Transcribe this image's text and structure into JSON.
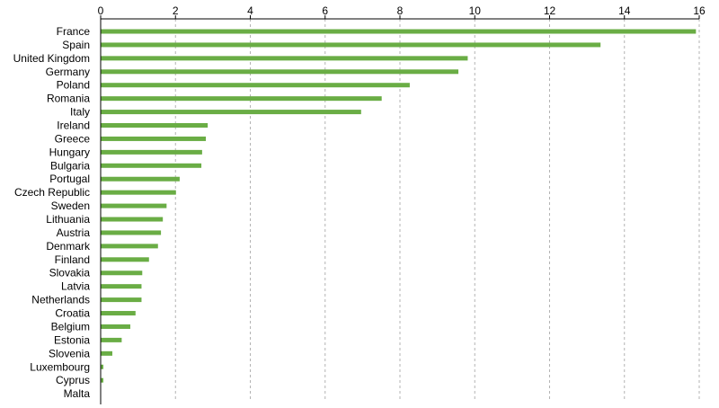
{
  "chart_data": {
    "type": "bar",
    "orientation": "horizontal",
    "categories": [
      "France",
      "Spain",
      "United Kingdom",
      "Germany",
      "Poland",
      "Romania",
      "Italy",
      "Ireland",
      "Greece",
      "Hungary",
      "Bulgaria",
      "Portugal",
      "Czech Republic",
      "Sweden",
      "Lithuania",
      "Austria",
      "Denmark",
      "Finland",
      "Slovakia",
      "Latvia",
      "Netherlands",
      "Croatia",
      "Belgium",
      "Estonia",
      "Slovenia",
      "Luxembourg",
      "Cyprus",
      "Malta"
    ],
    "values": [
      15.9,
      13.35,
      9.8,
      9.55,
      8.25,
      7.5,
      6.95,
      2.85,
      2.8,
      2.7,
      2.68,
      2.1,
      2.0,
      1.75,
      1.65,
      1.6,
      1.52,
      1.28,
      1.1,
      1.08,
      1.08,
      0.92,
      0.78,
      0.55,
      0.3,
      0.06,
      0.06,
      0.0
    ],
    "ticks": [
      "0",
      "2",
      "4",
      "6",
      "8",
      "10",
      "12",
      "14",
      "16"
    ],
    "xlim": [
      0,
      16
    ],
    "title": "",
    "xlabel": "",
    "ylabel": "",
    "grid": "vertical dashed",
    "axis_position": "top",
    "bar_color": "#6aad45",
    "grid_color": "#b3b3b3"
  }
}
